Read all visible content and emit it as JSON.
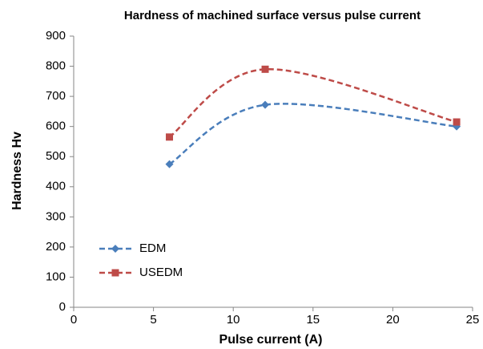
{
  "chart_data": {
    "type": "line",
    "title": "Hardness of machined surface versus pulse current",
    "xlabel": "Pulse current (A)",
    "ylabel": "Hardness Hv",
    "x": [
      6,
      12,
      24
    ],
    "series": [
      {
        "name": "EDM",
        "color": "#4a7ebb",
        "marker": "diamond",
        "values": [
          475,
          672,
          600
        ]
      },
      {
        "name": "USEDM",
        "color": "#be4b48",
        "marker": "square",
        "values": [
          565,
          790,
          615
        ]
      }
    ],
    "xlim": [
      0,
      25
    ],
    "xticks": [
      0,
      5,
      10,
      15,
      20,
      25
    ],
    "ylim": [
      0,
      900
    ],
    "yticks": [
      0,
      100,
      200,
      300,
      400,
      500,
      600,
      700,
      800,
      900
    ],
    "grid": false,
    "smooth": true,
    "dashed": true,
    "legend": "lower left"
  }
}
